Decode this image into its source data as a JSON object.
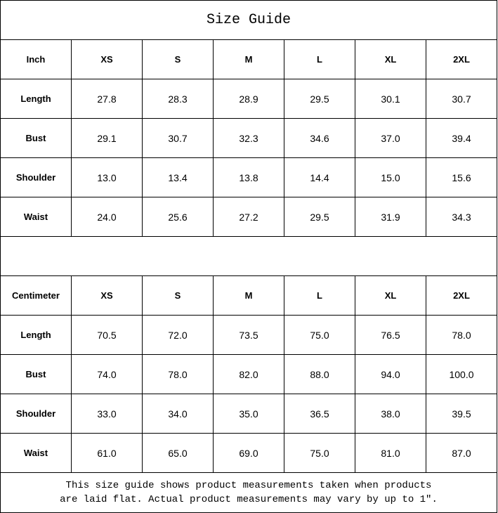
{
  "title": "Size Guide",
  "sizes": [
    "XS",
    "S",
    "M",
    "L",
    "XL",
    "2XL"
  ],
  "inch": {
    "unit_label": "Inch",
    "rows": [
      {
        "label": "Length",
        "values": [
          "27.8",
          "28.3",
          "28.9",
          "29.5",
          "30.1",
          "30.7"
        ]
      },
      {
        "label": "Bust",
        "values": [
          "29.1",
          "30.7",
          "32.3",
          "34.6",
          "37.0",
          "39.4"
        ]
      },
      {
        "label": "Shoulder",
        "values": [
          "13.0",
          "13.4",
          "13.8",
          "14.4",
          "15.0",
          "15.6"
        ]
      },
      {
        "label": "Waist",
        "values": [
          "24.0",
          "25.6",
          "27.2",
          "29.5",
          "31.9",
          "34.3"
        ]
      }
    ]
  },
  "centimeter": {
    "unit_label": "Centimeter",
    "rows": [
      {
        "label": "Length",
        "values": [
          "70.5",
          "72.0",
          "73.5",
          "75.0",
          "76.5",
          "78.0"
        ]
      },
      {
        "label": "Bust",
        "values": [
          "74.0",
          "78.0",
          "82.0",
          "88.0",
          "94.0",
          "100.0"
        ]
      },
      {
        "label": "Shoulder",
        "values": [
          "33.0",
          "34.0",
          "35.0",
          "36.5",
          "38.0",
          "39.5"
        ]
      },
      {
        "label": "Waist",
        "values": [
          "61.0",
          "65.0",
          "69.0",
          "75.0",
          "81.0",
          "87.0"
        ]
      }
    ]
  },
  "note": {
    "line1": "This size guide shows product measurements taken when products",
    "line2": "are laid flat. Actual product measurements may vary by up to 1″."
  }
}
